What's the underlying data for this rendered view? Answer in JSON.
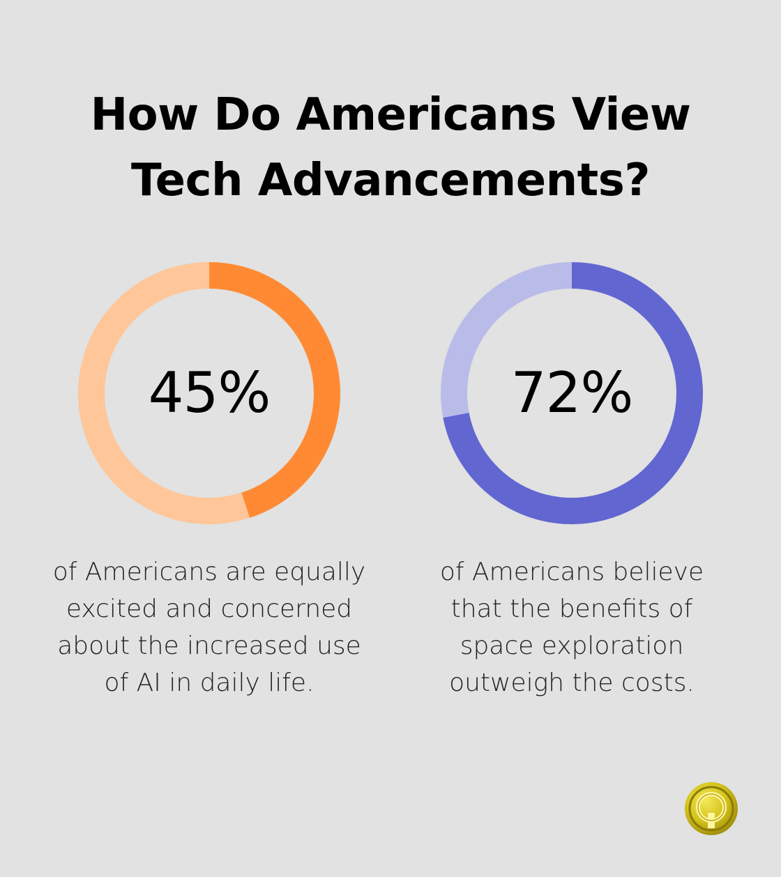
{
  "title": {
    "line1": "How Do Americans View",
    "line2": "Tech Advancements?"
  },
  "colors": {
    "background": "#e1e2e1",
    "orange": "#ff8a33",
    "orange_light": "#ffc699",
    "purple": "#6166d1",
    "purple_light": "#b9bbe9",
    "logo_gold": "#d4c21a"
  },
  "chart_data": [
    {
      "type": "pie",
      "variant": "donut",
      "value_label": "45%",
      "values": [
        45,
        55
      ],
      "labels": [
        "equally excited and concerned",
        "other"
      ],
      "caption": "of Americans are equally excited and concerned about the increased use of AI in daily life."
    },
    {
      "type": "pie",
      "variant": "donut",
      "value_label": "72%",
      "values": [
        72,
        28
      ],
      "labels": [
        "benefits outweigh costs",
        "other"
      ],
      "caption": "of Americans believe that the benefits of space exploration outweigh the costs."
    }
  ],
  "logo": {
    "icon": "q-coin-logo-icon"
  }
}
